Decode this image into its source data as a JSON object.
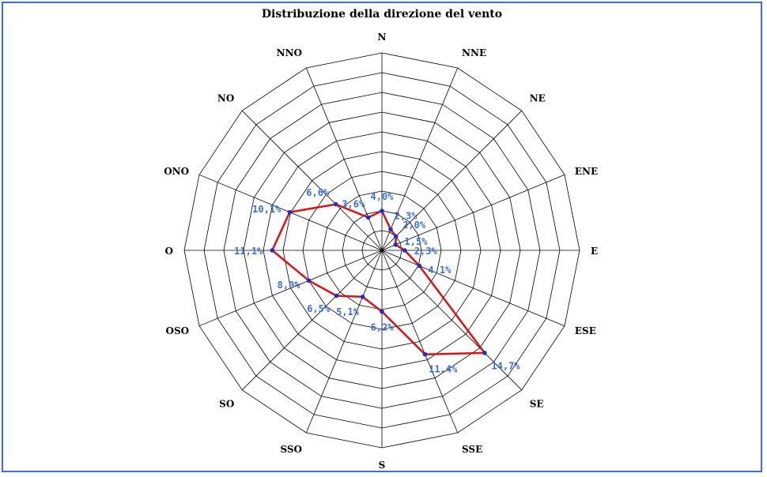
{
  "chart_data": {
    "type": "radar",
    "title": "Distribuzione della direzione del vento",
    "directions": [
      "N",
      "NNE",
      "NE",
      "ENE",
      "E",
      "ESE",
      "SE",
      "SSE",
      "S",
      "SSO",
      "SO",
      "OSO",
      "O",
      "ONO",
      "NO",
      "NNO"
    ],
    "values": [
      4.0,
      2.3,
      2.0,
      1.5,
      2.3,
      4.1,
      14.7,
      11.4,
      6.2,
      5.1,
      6.5,
      8.0,
      11.1,
      10.1,
      6.6,
      3.6
    ],
    "value_labels": [
      "4,0%",
      "2,3%",
      "2,0%",
      "1,5%",
      "2,3%",
      "4,1%",
      "14,7%",
      "11,4%",
      "6,2%",
      "5,1%",
      "6,5%",
      "8,0%",
      "11,1%",
      "10,1%",
      "6,6%",
      "3,6%"
    ],
    "rlim": [
      0,
      20
    ],
    "rings": 10,
    "grid": true,
    "series_color": "#e01010",
    "marker_color": "#1a2fd0",
    "label_color": "#3a6fd8"
  }
}
